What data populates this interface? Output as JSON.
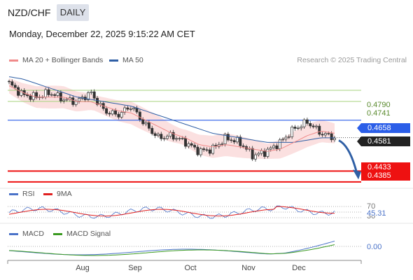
{
  "header": {
    "pair": "NZD/CHF",
    "timeframe": "DAILY",
    "datetime": "Monday, December 22, 2025 9:15:22 AM CET"
  },
  "legend_main": [
    {
      "label": "MA 20 + Bollinger Bands",
      "color": "#f08a8a"
    },
    {
      "label": "MA 50",
      "color": "#2f5fa5"
    }
  ],
  "copyright": "Research © 2025 Trading Central",
  "legend_rsi": [
    {
      "label": "RSI",
      "color": "#4a72c8"
    },
    {
      "label": "9MA",
      "color": "#e02020"
    }
  ],
  "legend_macd": [
    {
      "label": "MACD",
      "color": "#4a72c8"
    },
    {
      "label": "MACD Signal",
      "color": "#3a9a20"
    }
  ],
  "levels": [
    {
      "label": "0.4790",
      "value": 0.479,
      "kind": "resistance"
    },
    {
      "label": "0.4741",
      "value": 0.4741,
      "kind": "resistance"
    },
    {
      "label": "0.4658",
      "value": 0.4658,
      "kind": "pivot"
    },
    {
      "label": "0.4581",
      "value": 0.4581,
      "kind": "last"
    },
    {
      "label": "0.4433",
      "value": 0.4433,
      "kind": "support"
    },
    {
      "label": "0.4385",
      "value": 0.4385,
      "kind": "support"
    }
  ],
  "colors": {
    "pivot": "#2b5ee8",
    "support": "#ee1111",
    "resistance": "#a6d37e",
    "last": "#222222",
    "arrow": "#2f5fa5"
  },
  "rsi_labels": {
    "upper": "70",
    "value": "45.31",
    "lower": "30"
  },
  "macd_label": "0.00",
  "chart_data": {
    "type": "candlestick",
    "ylim": [
      0.436,
      0.4855
    ],
    "x_ticks": [
      "Aug",
      "Sep",
      "Oct",
      "Nov",
      "Dec"
    ],
    "ohlc_anchor_closes": [
      0.482,
      0.477,
      0.476,
      0.478,
      0.475,
      0.474,
      0.478,
      0.47,
      0.468,
      0.472,
      0.464,
      0.458,
      0.459,
      0.456,
      0.452,
      0.453,
      0.458,
      0.456,
      0.45,
      0.452,
      0.456,
      0.462,
      0.465,
      0.46,
      0.458
    ],
    "ma20_anchor": [
      0.481,
      0.478,
      0.476,
      0.476,
      0.476,
      0.474,
      0.474,
      0.472,
      0.47,
      0.469,
      0.466,
      0.463,
      0.46,
      0.458,
      0.455,
      0.454,
      0.455,
      0.454,
      0.453,
      0.452,
      0.453,
      0.456,
      0.459,
      0.461,
      0.46
    ],
    "ma50_anchor": [
      0.485,
      0.484,
      0.482,
      0.48,
      0.478,
      0.476,
      0.475,
      0.474,
      0.473,
      0.472,
      0.47,
      0.468,
      0.466,
      0.464,
      0.462,
      0.46,
      0.459,
      0.458,
      0.457,
      0.456,
      0.456,
      0.456,
      0.457,
      0.458,
      0.458
    ],
    "bb_width": 0.0042,
    "forecast": {
      "from": 0.4581,
      "to": 0.4433
    }
  }
}
